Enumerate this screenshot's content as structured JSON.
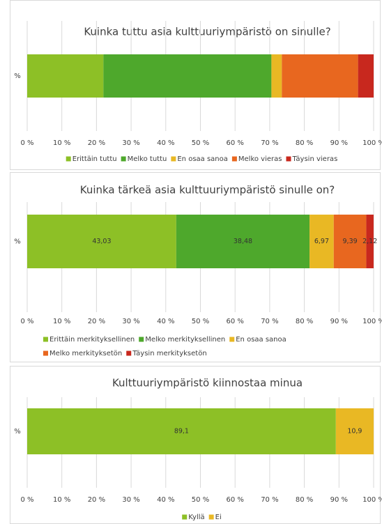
{
  "chart_data": [
    {
      "type": "stacked_bar",
      "orientation": "horizontal",
      "title": "Kuinka tuttu asia kulttuuriympäristö on sinulle?",
      "categories": [
        "%"
      ],
      "series": [
        {
          "name": "Erittäin tuttu",
          "color": "#8dc026",
          "values": [
            22
          ]
        },
        {
          "name": "Melko tuttu",
          "color": "#4ea82c",
          "values": [
            48.5
          ]
        },
        {
          "name": "En osaa sanoa",
          "color": "#e9b824",
          "values": [
            3
          ]
        },
        {
          "name": "Melko vieras",
          "color": "#e8671f",
          "values": [
            22
          ]
        },
        {
          "name": "Täysin vieras",
          "color": "#c8281e",
          "values": [
            4.5
          ]
        }
      ],
      "xlim": [
        0,
        100
      ],
      "xticks": [
        {
          "value": 0,
          "label": "0 %"
        },
        {
          "value": 10,
          "label": "10 %"
        },
        {
          "value": 20,
          "label": "20 %"
        },
        {
          "value": 30,
          "label": "30 %"
        },
        {
          "value": 40,
          "label": "40 %"
        },
        {
          "value": 50,
          "label": "50 %"
        },
        {
          "value": 60,
          "label": "60 %"
        },
        {
          "value": 70,
          "label": "70 %"
        },
        {
          "value": 80,
          "label": "80 %"
        },
        {
          "value": 90,
          "label": "90 %"
        },
        {
          "value": 100,
          "label": "100 %"
        }
      ],
      "grid": true,
      "legend": "bottom"
    },
    {
      "type": "stacked_bar",
      "orientation": "horizontal",
      "title": "Kuinka tärkeä asia kulttuuriympäristö sinulle on?",
      "categories": [
        "%"
      ],
      "series": [
        {
          "name": "Erittäin merkityksellinen",
          "color": "#8dc026",
          "values": [
            43.03
          ],
          "value_labels": [
            "43,03"
          ]
        },
        {
          "name": "Melko merkityksellinen",
          "color": "#4ea82c",
          "values": [
            38.48
          ],
          "value_labels": [
            "38,48"
          ]
        },
        {
          "name": "En osaa sanoa",
          "color": "#e9b824",
          "values": [
            6.97
          ],
          "value_labels": [
            "6,97"
          ]
        },
        {
          "name": "Melko merkityksetön",
          "color": "#e8671f",
          "values": [
            9.39
          ],
          "value_labels": [
            "9,39"
          ]
        },
        {
          "name": "Täysin merkityksetön",
          "color": "#c8281e",
          "values": [
            2.12
          ],
          "value_labels": [
            "2,12"
          ]
        }
      ],
      "xlim": [
        0,
        100
      ],
      "xticks": [
        {
          "value": 0,
          "label": "0 %"
        },
        {
          "value": 10,
          "label": "10 %"
        },
        {
          "value": 20,
          "label": "20 %"
        },
        {
          "value": 30,
          "label": "30 %"
        },
        {
          "value": 40,
          "label": "40 %"
        },
        {
          "value": 50,
          "label": "50 %"
        },
        {
          "value": 60,
          "label": "60 %"
        },
        {
          "value": 70,
          "label": "70 %"
        },
        {
          "value": 80,
          "label": "80 %"
        },
        {
          "value": 90,
          "label": "90 %"
        },
        {
          "value": 100,
          "label": "100 %"
        }
      ],
      "grid": true,
      "legend": "bottom"
    },
    {
      "type": "stacked_bar",
      "orientation": "horizontal",
      "title": "Kulttuuriympäristö kiinnostaa minua",
      "categories": [
        "%"
      ],
      "series": [
        {
          "name": "Kyllä",
          "color": "#8dc026",
          "values": [
            89.1
          ],
          "value_labels": [
            "89,1"
          ]
        },
        {
          "name": "Ei",
          "color": "#e9b824",
          "values": [
            10.9
          ],
          "value_labels": [
            "10,9"
          ]
        }
      ],
      "xlim": [
        0,
        100
      ],
      "xticks": [
        {
          "value": 0,
          "label": "0 %"
        },
        {
          "value": 10,
          "label": "10 %"
        },
        {
          "value": 20,
          "label": "20 %"
        },
        {
          "value": 30,
          "label": "30 %"
        },
        {
          "value": 40,
          "label": "40 %"
        },
        {
          "value": 50,
          "label": "50 %"
        },
        {
          "value": 60,
          "label": "60 %"
        },
        {
          "value": 70,
          "label": "70 %"
        },
        {
          "value": 80,
          "label": "80 %"
        },
        {
          "value": 90,
          "label": "90 %"
        },
        {
          "value": 100,
          "label": "100 %"
        }
      ],
      "grid": true,
      "legend": "bottom"
    }
  ]
}
